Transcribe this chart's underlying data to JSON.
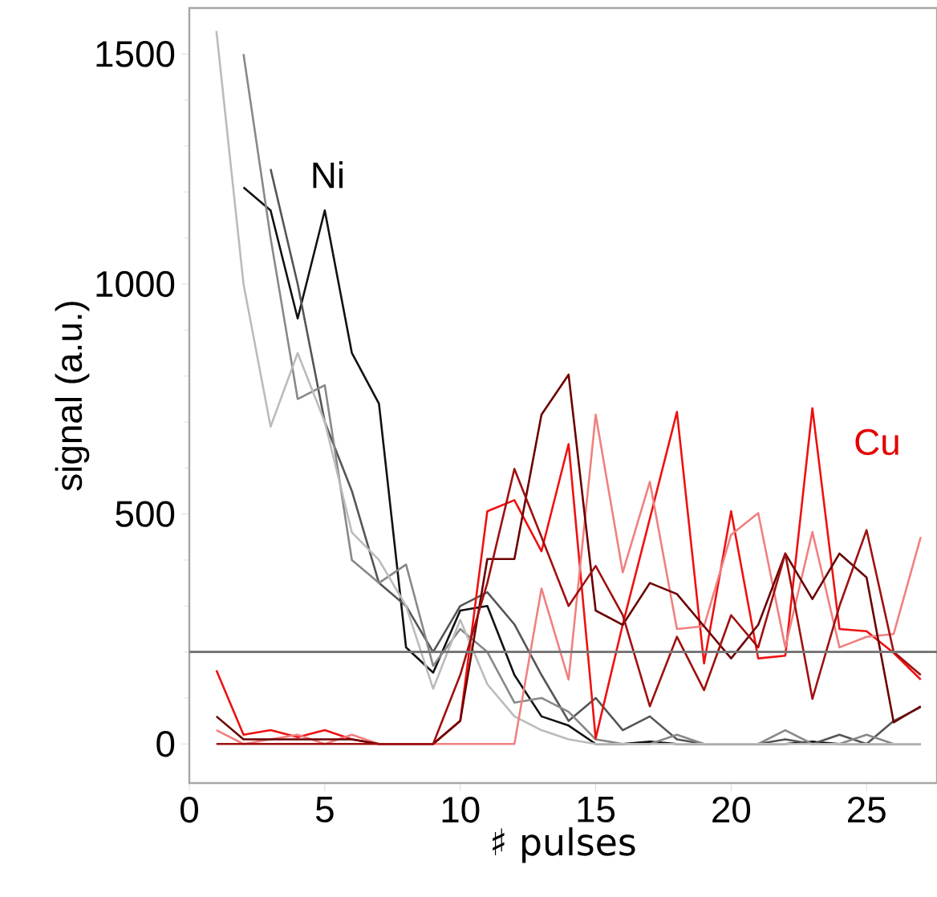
{
  "chart_data": {
    "type": "line",
    "xlabel": "♯ pulses",
    "ylabel": "signal (a.u.)",
    "x": [
      1,
      2,
      3,
      4,
      5,
      6,
      7,
      8,
      9,
      10,
      11,
      12,
      13,
      14,
      15,
      16,
      17,
      18,
      19,
      20,
      21,
      22,
      23,
      24,
      25,
      26,
      27
    ],
    "xlim": [
      0,
      27.6
    ],
    "ylim": [
      -85,
      1600
    ],
    "xticks": [
      0,
      5,
      10,
      15,
      20,
      25
    ],
    "yticks": [
      0,
      500,
      1000,
      1500
    ],
    "grid": false,
    "series": [
      {
        "color": "#111111",
        "values": [
          null,
          1210,
          1160,
          925,
          1160,
          850,
          740,
          210,
          155,
          290,
          300,
          150,
          60,
          40,
          0,
          0,
          5,
          0,
          0,
          0,
          0,
          0,
          5,
          0,
          0,
          0,
          0
        ]
      },
      {
        "color": "#555555",
        "values": [
          null,
          null,
          1250,
          1000,
          700,
          550,
          350,
          300,
          200,
          300,
          330,
          260,
          150,
          50,
          100,
          30,
          60,
          10,
          0,
          0,
          0,
          10,
          0,
          20,
          0,
          50,
          80
        ]
      },
      {
        "color": "#888888",
        "values": [
          null,
          1500,
          1100,
          750,
          780,
          400,
          350,
          390,
          170,
          250,
          200,
          90,
          100,
          70,
          10,
          0,
          0,
          20,
          0,
          0,
          0,
          30,
          0,
          0,
          20,
          0,
          0
        ]
      },
      {
        "color": "#bbbbbb",
        "values": [
          1550,
          1000,
          690,
          850,
          700,
          460,
          400,
          300,
          120,
          270,
          130,
          60,
          30,
          10,
          0,
          0,
          0,
          0,
          0,
          0,
          0,
          0,
          0,
          0,
          0,
          0,
          0
        ]
      },
      {
        "color": "#ee1111",
        "values": [
          160,
          20,
          30,
          15,
          30,
          10,
          0,
          0,
          0,
          50,
          506,
          530,
          419,
          652,
          12,
          260,
          490,
          722,
          175,
          506,
          186,
          192,
          730,
          250,
          245,
          198,
          140
        ]
      },
      {
        "color": "#f08080",
        "values": [
          30,
          0,
          10,
          20,
          0,
          20,
          0,
          0,
          0,
          0,
          0,
          0,
          338,
          140,
          716,
          373,
          570,
          250,
          256,
          455,
          502,
          210,
          461,
          210,
          233,
          239,
          450
        ]
      },
      {
        "color": "#6b0000",
        "values": [
          60,
          10,
          10,
          10,
          10,
          10,
          0,
          0,
          0,
          50,
          402,
          402,
          716,
          803,
          290,
          259,
          350,
          326,
          256,
          186,
          259,
          414,
          315,
          414,
          362,
          47,
          82
        ]
      },
      {
        "color": "#a01010",
        "values": [
          0,
          0,
          0,
          0,
          0,
          0,
          0,
          0,
          0,
          150,
          350,
          598,
          450,
          300,
          387,
          280,
          82,
          233,
          117,
          280,
          210,
          414,
          98,
          300,
          465,
          200,
          150
        ]
      }
    ],
    "ref_lines": [
      {
        "axis": "y",
        "value": 200,
        "color": "#777777"
      }
    ],
    "annotations": [
      "Ni",
      "Cu"
    ]
  }
}
